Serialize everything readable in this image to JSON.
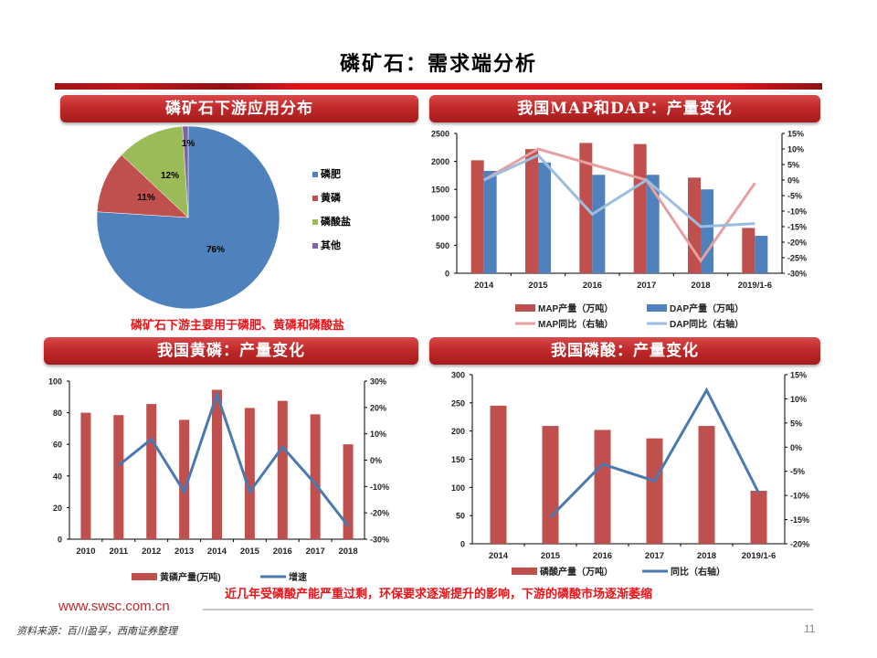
{
  "page": {
    "title": "磷矿石：需求端分析",
    "page_number": "11",
    "footer_site": "www.swsc.com.cn",
    "footer_source": "资料来源：百川盈孚，西南证券整理",
    "bottom_caption": "近几年受磷酸产能严重过剩，环保要求逐渐提升的影响，下游的磷酸市场逐渐萎缩"
  },
  "panels": {
    "pie": {
      "banner": "磷矿石下游应用分布",
      "caption": "磷矿石下游主要用于磷肥、黄磷和磷酸盐"
    },
    "mapdap": {
      "banner": "我国MAP和DAP：产量变化"
    },
    "yellowp": {
      "banner": "我国黄磷：产量变化"
    },
    "acid": {
      "banner": "我国磷酸：产量变化"
    }
  },
  "colors": {
    "red_bar": "#c0504d",
    "blue_bar": "#4f81bd",
    "green": "#9bbb59",
    "purple": "#8064a2",
    "map_line": "#e6a0a0",
    "dap_line": "#9dbde0",
    "line_blue": "#4a78b0",
    "brand_red": "#c0161b"
  },
  "chart_data": [
    {
      "type": "pie",
      "title": "磷矿石下游应用分布",
      "categories": [
        "磷肥",
        "黄磷",
        "磷酸盐",
        "其他"
      ],
      "values": [
        76,
        11,
        12,
        1
      ],
      "labels": [
        "76%",
        "11%",
        "12%",
        "1%"
      ],
      "legend_position": "right"
    },
    {
      "type": "bar",
      "title": "我国MAP和DAP：产量变化",
      "categories": [
        "2014",
        "2015",
        "2016",
        "2017",
        "2018",
        "2019/1-6"
      ],
      "series": [
        {
          "name": "MAP产量（万吨）",
          "type": "bar",
          "axis": "left",
          "values": [
            2020,
            2220,
            2330,
            2310,
            1710,
            810
          ]
        },
        {
          "name": "DAP产量（万吨）",
          "type": "bar",
          "axis": "left",
          "values": [
            1830,
            1980,
            1760,
            1760,
            1500,
            670
          ]
        },
        {
          "name": "MAP同比（右轴）",
          "type": "line",
          "axis": "right",
          "values": [
            0,
            10,
            5,
            0,
            -26,
            -1
          ]
        },
        {
          "name": "DAP同比（右轴）",
          "type": "line",
          "axis": "right",
          "values": [
            0,
            8,
            -11,
            0,
            -15,
            -14
          ]
        }
      ],
      "ylim": [
        0,
        2500
      ],
      "yticks": [
        "0",
        "500",
        "1000",
        "1500",
        "2000",
        "2500"
      ],
      "y2lim": [
        -30,
        15
      ],
      "y2ticks": [
        "-30%",
        "-25%",
        "-20%",
        "-15%",
        "-10%",
        "-5%",
        "0%",
        "5%",
        "10%",
        "15%"
      ],
      "legend_position": "bottom"
    },
    {
      "type": "bar",
      "title": "我国黄磷：产量变化",
      "categories": [
        "2010",
        "2011",
        "2012",
        "2013",
        "2014",
        "2015",
        "2016",
        "2017",
        "2018"
      ],
      "series": [
        {
          "name": "黄磷产量(万吨)",
          "type": "bar",
          "axis": "left",
          "values": [
            80,
            78.5,
            85.5,
            75.5,
            94.5,
            83,
            87.5,
            79,
            60
          ]
        },
        {
          "name": "增速",
          "type": "line",
          "axis": "right",
          "values": [
            null,
            -2,
            8,
            -12,
            25,
            -12,
            5,
            -9,
            -25
          ]
        }
      ],
      "ylim": [
        0,
        100
      ],
      "yticks": [
        "0",
        "20",
        "40",
        "60",
        "80",
        "100"
      ],
      "y2lim": [
        -30,
        30
      ],
      "y2ticks": [
        "-30%",
        "-20%",
        "-10%",
        "0%",
        "10%",
        "20%",
        "30%"
      ],
      "legend_position": "bottom"
    },
    {
      "type": "bar",
      "title": "我国磷酸：产量变化",
      "categories": [
        "2014",
        "2015",
        "2016",
        "2017",
        "2018",
        "2019/1-6"
      ],
      "series": [
        {
          "name": "磷酸产量（万吨）",
          "type": "bar",
          "axis": "left",
          "values": [
            245,
            209,
            202,
            187,
            209,
            94
          ]
        },
        {
          "name": "同比（右轴）",
          "type": "line",
          "axis": "right",
          "values": [
            null,
            -14.5,
            -3.5,
            -7,
            11.8,
            -9.5
          ]
        }
      ],
      "ylim": [
        0,
        300
      ],
      "yticks": [
        "0",
        "50",
        "100",
        "150",
        "200",
        "250",
        "300"
      ],
      "y2lim": [
        -20,
        15
      ],
      "y2ticks": [
        "-20%",
        "-15%",
        "-10%",
        "-5%",
        "0%",
        "5%",
        "10%",
        "15%"
      ],
      "legend_position": "bottom"
    }
  ]
}
